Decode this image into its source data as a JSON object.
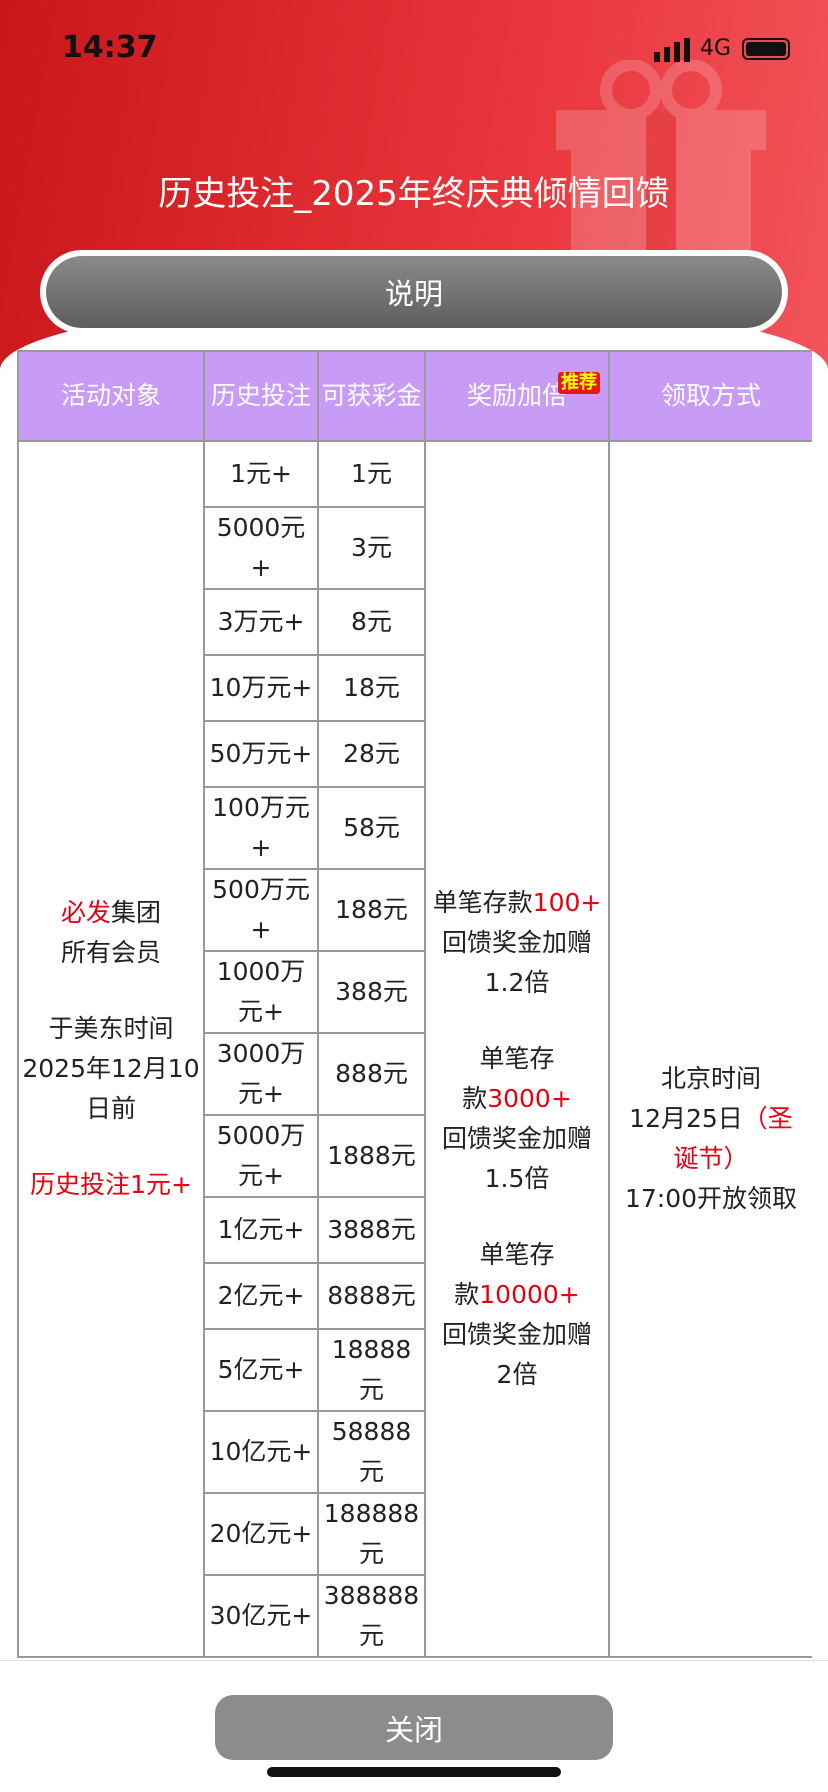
{
  "status_bar": {
    "time": "14:37",
    "network": "4G"
  },
  "header": {
    "title": "历史投注_2025年终庆典倾情回馈",
    "button": "说明"
  },
  "table": {
    "headers": [
      "活动对象",
      "历史投注",
      "可获彩金",
      "奖励加倍",
      "领取方式"
    ],
    "badge": "推荐",
    "target": [
      [
        [
          {
            "text": "必发",
            "hl": true
          },
          {
            "text": "集团"
          }
        ],
        [
          {
            "text": "所有会员"
          }
        ]
      ],
      [
        [
          {
            "text": "于美东时间"
          }
        ],
        [
          {
            "text": "2025年12月10"
          }
        ],
        [
          {
            "text": "日前"
          }
        ]
      ],
      [
        [
          {
            "text": "历史投注1元+",
            "hl": true
          }
        ]
      ]
    ],
    "rows": [
      [
        "1元+",
        "1元"
      ],
      [
        "5000元+",
        "3元"
      ],
      [
        "3万元+",
        "8元"
      ],
      [
        "10万元+",
        "18元"
      ],
      [
        "50万元+",
        "28元"
      ],
      [
        "100万元+",
        "58元"
      ],
      [
        "500万元+",
        "188元"
      ],
      [
        "1000万元+",
        "388元"
      ],
      [
        "3000万元+",
        "888元"
      ],
      [
        "5000万元+",
        "1888元"
      ],
      [
        "1亿元+",
        "3888元"
      ],
      [
        "2亿元+",
        "8888元"
      ],
      [
        "5亿元+",
        "18888元"
      ],
      [
        "10亿元+",
        "58888元"
      ],
      [
        "20亿元+",
        "188888元"
      ],
      [
        "30亿元+",
        "388888元"
      ]
    ],
    "bonus": [
      [
        [
          {
            "text": "单笔存款"
          },
          {
            "text": "100+",
            "hl": true
          }
        ],
        [
          {
            "text": "回馈奖金加赠"
          }
        ],
        [
          {
            "text": "1.2倍"
          }
        ]
      ],
      [
        [
          {
            "text": "单笔存"
          }
        ],
        [
          {
            "text": "款"
          },
          {
            "text": "3000+",
            "hl": true
          }
        ],
        [
          {
            "text": "回馈奖金加赠"
          }
        ],
        [
          {
            "text": "1.5倍"
          }
        ]
      ],
      [
        [
          {
            "text": "单笔存"
          }
        ],
        [
          {
            "text": "款"
          },
          {
            "text": "10000+",
            "hl": true
          }
        ],
        [
          {
            "text": "回馈奖金加赠"
          }
        ],
        [
          {
            "text": "2倍"
          }
        ]
      ]
    ],
    "claim": [
      [
        [
          {
            "text": "北京时间"
          }
        ],
        [
          {
            "text": "12月25日"
          },
          {
            "text": "（圣",
            "hl": true
          }
        ],
        [
          {
            "text": "诞节）",
            "hl": true
          }
        ],
        [
          {
            "text": "17:00开放领取"
          }
        ]
      ]
    ]
  },
  "footer": {
    "button": "关闭"
  }
}
